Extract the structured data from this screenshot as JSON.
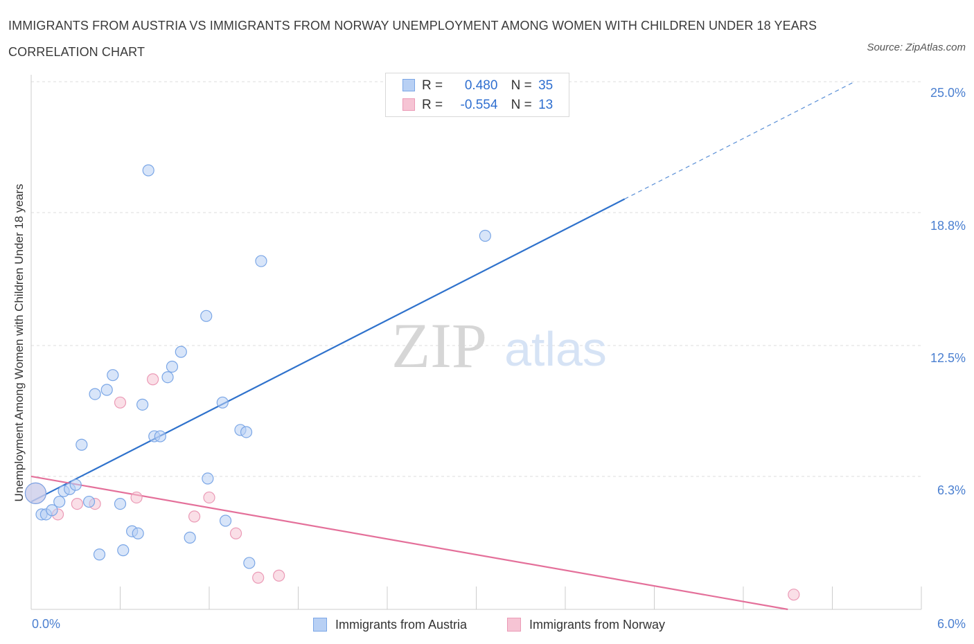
{
  "title": "IMMIGRANTS FROM AUSTRIA VS IMMIGRANTS FROM NORWAY UNEMPLOYMENT AMONG WOMEN WITH CHILDREN UNDER 18 YEARS CORRELATION CHART",
  "source": "Source: ZipAtlas.com",
  "watermark": {
    "zip": "ZIP",
    "atlas": "atlas"
  },
  "colors": {
    "austria_fill": "#b8d0f4",
    "austria_stroke": "#7aa6e6",
    "austria_line": "#2f72cc",
    "norway_fill": "#f6c4d4",
    "norway_stroke": "#eb9ab6",
    "norway_line": "#e4709a",
    "tick_text": "#4a7fd0"
  },
  "stats": {
    "austria": {
      "r_label": "R =",
      "r_value": "0.480",
      "n_label": "N =",
      "n_value": "35"
    },
    "norway": {
      "r_label": "R =",
      "r_value": "-0.554",
      "n_label": "N =",
      "n_value": "13"
    }
  },
  "legend": {
    "austria": "Immigrants from Austria",
    "norway": "Immigrants from Norway"
  },
  "chart_data": {
    "type": "scatter",
    "title": "IMMIGRANTS FROM AUSTRIA VS IMMIGRANTS FROM NORWAY UNEMPLOYMENT AMONG WOMEN WITH CHILDREN UNDER 18 YEARS CORRELATION CHART",
    "xlabel": "",
    "ylabel": "Unemployment Among Women with Children Under 18 years",
    "xlim": [
      0,
      6.0
    ],
    "ylim": [
      0,
      25.0
    ],
    "x_tick_labels": [
      "0.0%",
      "6.0%"
    ],
    "y_ticks": [
      6.3,
      12.5,
      18.8,
      25.0
    ],
    "y_tick_labels": [
      "6.3%",
      "12.5%",
      "18.8%",
      "25.0%"
    ],
    "grid": "horizontal dashed",
    "legend_position": "bottom-center",
    "series": [
      {
        "name": "Immigrants from Austria",
        "r": 0.48,
        "n": 35,
        "points": [
          [
            0.03,
            5.5
          ],
          [
            0.07,
            4.5
          ],
          [
            0.1,
            4.5
          ],
          [
            0.14,
            4.7
          ],
          [
            0.19,
            5.1
          ],
          [
            0.22,
            5.6
          ],
          [
            0.26,
            5.7
          ],
          [
            0.3,
            5.9
          ],
          [
            0.34,
            7.8
          ],
          [
            0.39,
            5.1
          ],
          [
            0.43,
            10.2
          ],
          [
            0.46,
            2.6
          ],
          [
            0.51,
            10.4
          ],
          [
            0.55,
            11.1
          ],
          [
            0.6,
            5.0
          ],
          [
            0.62,
            2.8
          ],
          [
            0.68,
            3.7
          ],
          [
            0.72,
            3.6
          ],
          [
            0.75,
            9.7
          ],
          [
            0.79,
            20.8
          ],
          [
            0.83,
            8.2
          ],
          [
            0.87,
            8.2
          ],
          [
            0.92,
            11.0
          ],
          [
            0.95,
            11.5
          ],
          [
            1.01,
            12.2
          ],
          [
            1.07,
            3.4
          ],
          [
            1.18,
            13.9
          ],
          [
            1.19,
            6.2
          ],
          [
            1.29,
            9.8
          ],
          [
            1.31,
            4.2
          ],
          [
            1.41,
            8.5
          ],
          [
            1.45,
            8.4
          ],
          [
            1.47,
            2.2
          ],
          [
            1.55,
            16.5
          ],
          [
            3.06,
            17.7
          ]
        ],
        "trend": {
          "from": [
            0.0,
            5.1
          ],
          "to": [
            5.55,
            25.0
          ],
          "solid_until_x": 4.0
        }
      },
      {
        "name": "Immigrants from Norway",
        "r": -0.554,
        "n": 13,
        "points": [
          [
            0.03,
            5.5
          ],
          [
            0.18,
            4.5
          ],
          [
            0.31,
            5.0
          ],
          [
            0.43,
            5.0
          ],
          [
            0.6,
            9.8
          ],
          [
            0.71,
            5.3
          ],
          [
            0.82,
            10.9
          ],
          [
            1.1,
            4.4
          ],
          [
            1.2,
            5.3
          ],
          [
            1.38,
            3.6
          ],
          [
            1.53,
            1.5
          ],
          [
            1.67,
            1.6
          ],
          [
            5.14,
            0.7
          ]
        ],
        "trend": {
          "from": [
            0.0,
            6.3
          ],
          "to": [
            5.1,
            0.0
          ]
        }
      }
    ]
  }
}
